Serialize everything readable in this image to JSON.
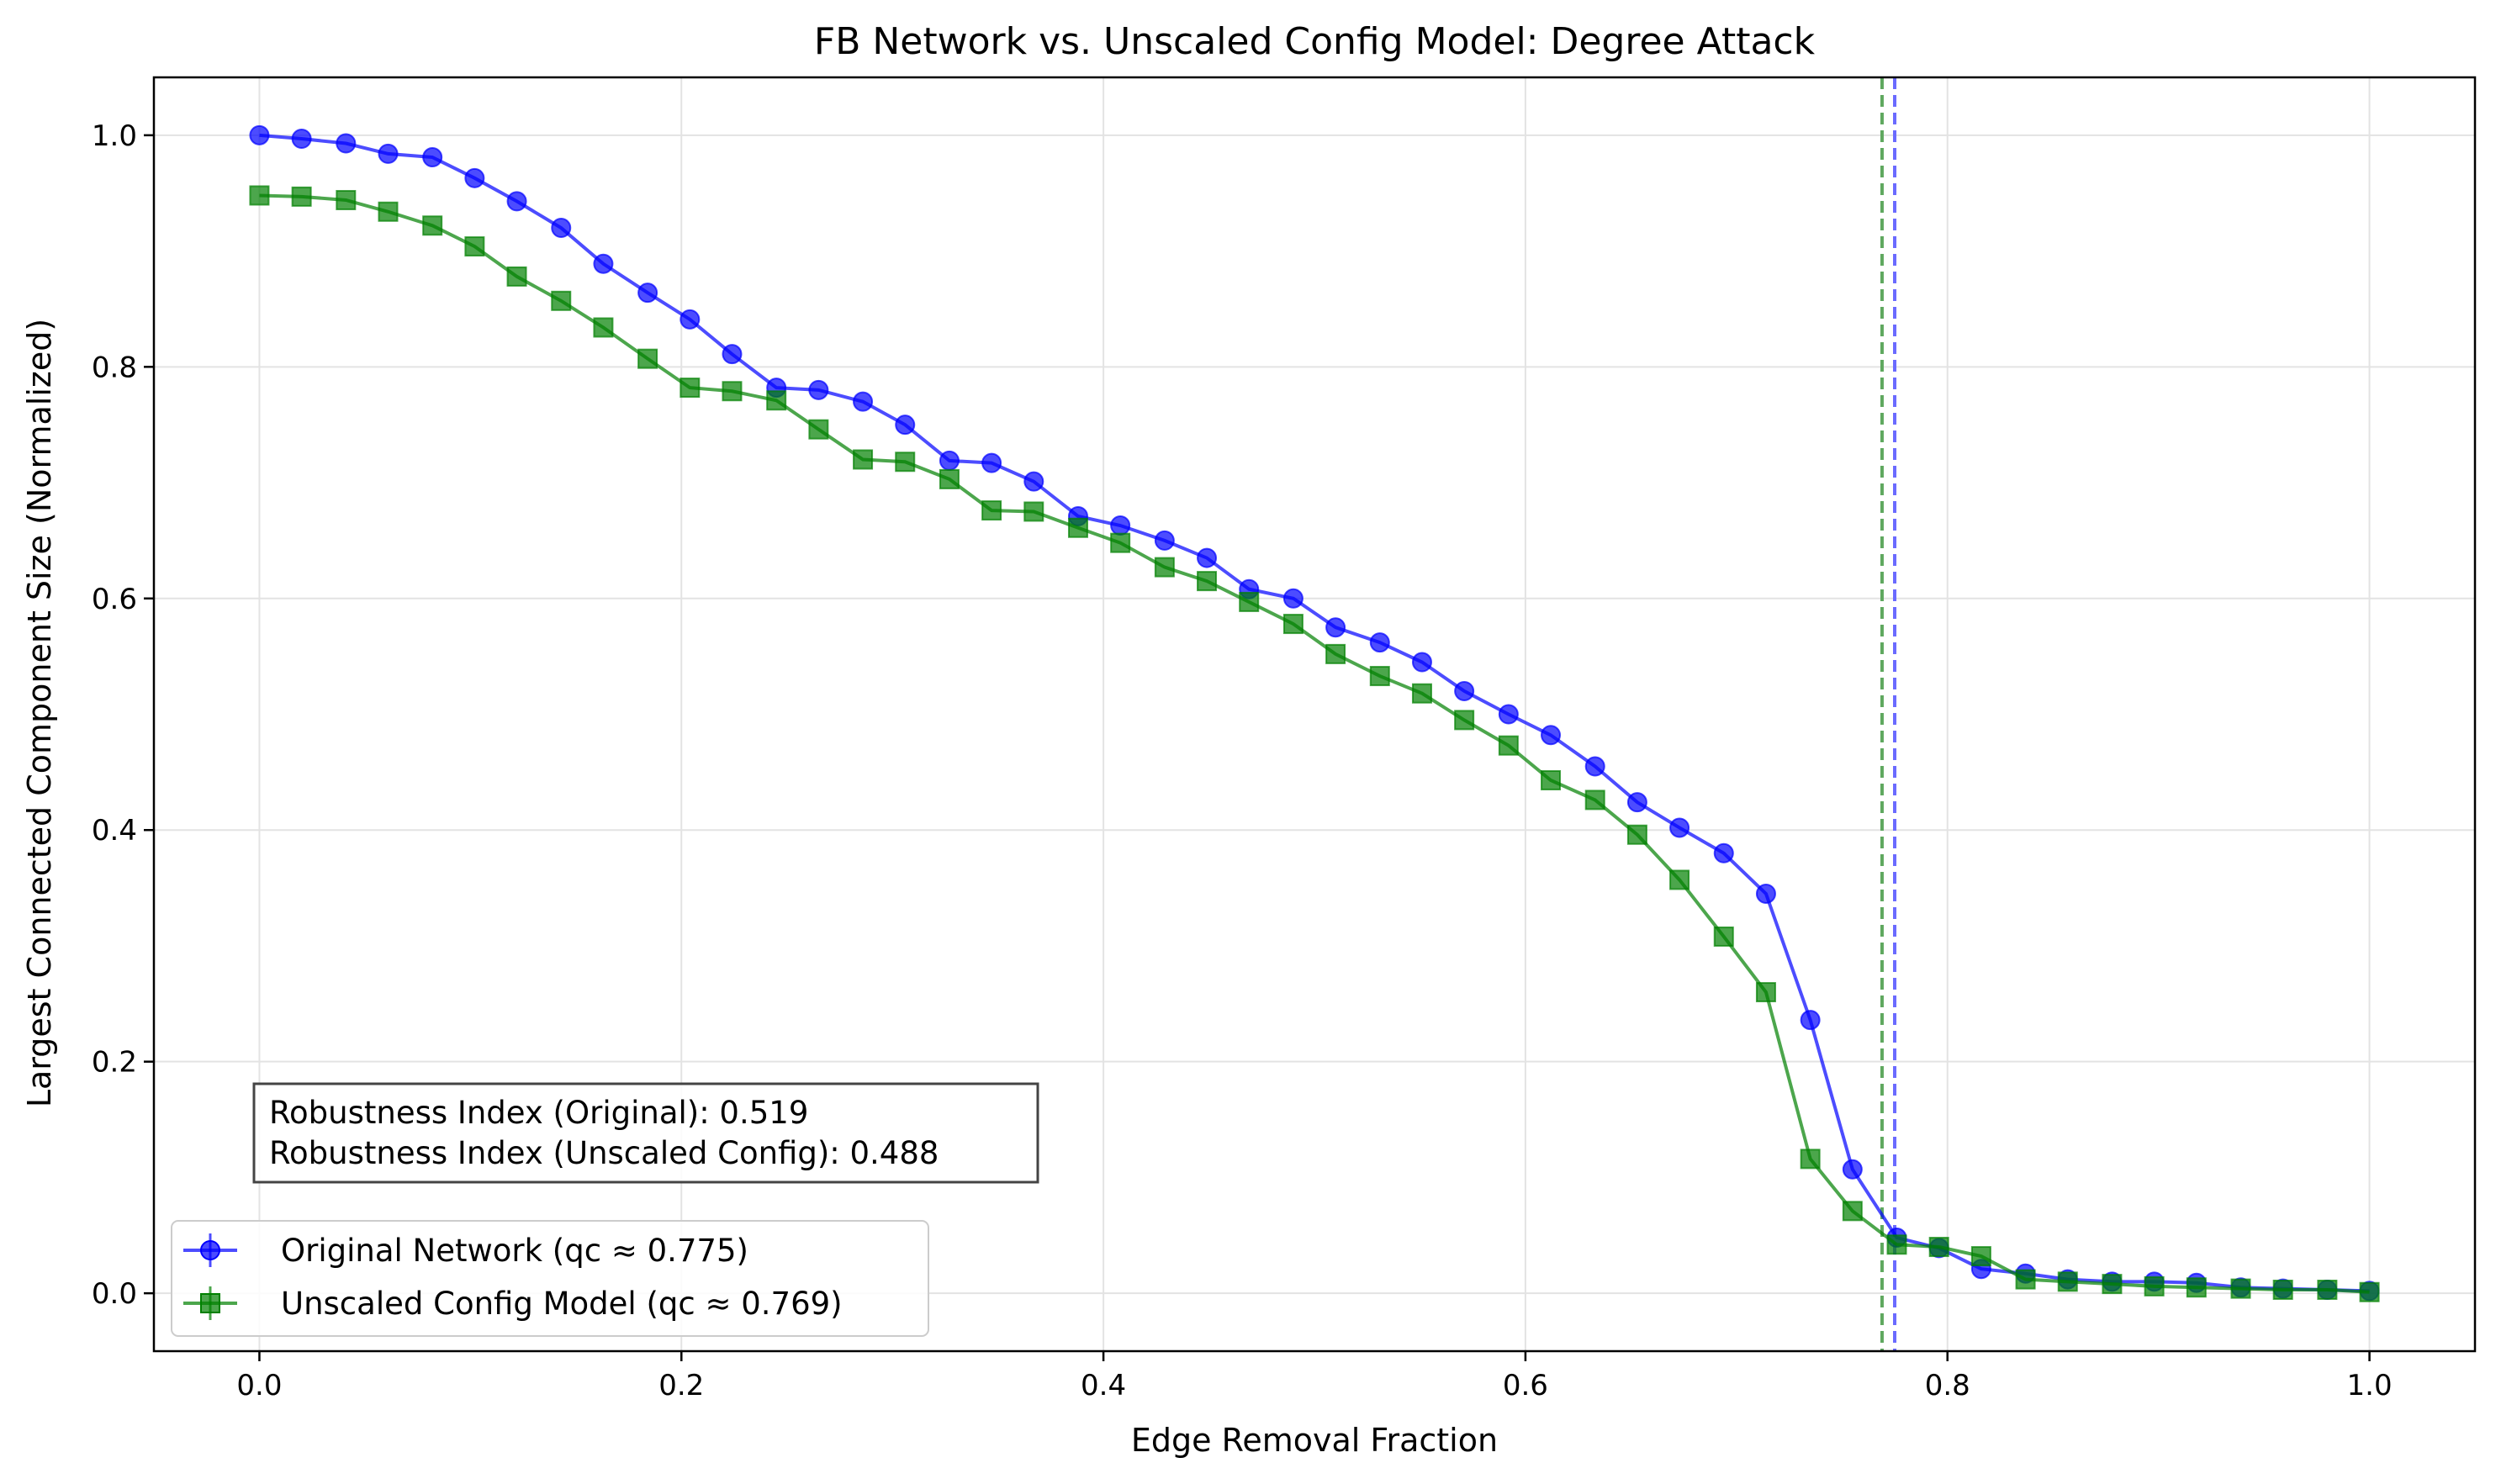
{
  "chart_data": {
    "type": "line",
    "title": "FB Network vs. Unscaled Config Model: Degree Attack",
    "xlabel": "Edge Removal Fraction",
    "ylabel": "Largest Connected Component Size (Normalized)",
    "xlim": [
      -0.05,
      1.05
    ],
    "ylim": [
      -0.05,
      1.05
    ],
    "xticks": [
      0.0,
      0.2,
      0.4,
      0.6,
      0.8,
      1.0
    ],
    "xtick_labels": [
      "0.0",
      "0.2",
      "0.4",
      "0.6",
      "0.8",
      "1.0"
    ],
    "yticks": [
      0.0,
      0.2,
      0.4,
      0.6,
      0.8,
      1.0
    ],
    "ytick_labels": [
      "0.0",
      "0.2",
      "0.4",
      "0.6",
      "0.8",
      "1.0"
    ],
    "grid": true,
    "legend_position": "lower-left",
    "x": [
      0.0,
      0.02,
      0.041,
      0.061,
      0.082,
      0.102,
      0.122,
      0.143,
      0.163,
      0.184,
      0.204,
      0.224,
      0.245,
      0.265,
      0.286,
      0.306,
      0.327,
      0.347,
      0.367,
      0.388,
      0.408,
      0.429,
      0.449,
      0.469,
      0.49,
      0.51,
      0.531,
      0.551,
      0.571,
      0.592,
      0.612,
      0.633,
      0.653,
      0.673,
      0.694,
      0.714,
      0.735,
      0.755,
      0.776,
      0.796,
      0.816,
      0.837,
      0.857,
      0.878,
      0.898,
      0.918,
      0.939,
      0.959,
      0.98,
      1.0
    ],
    "series": [
      {
        "name": "Original Network (qc ≈ 0.775)",
        "color": "#0000ff",
        "marker": "circle",
        "values": [
          1.0,
          0.997,
          0.993,
          0.984,
          0.981,
          0.963,
          0.943,
          0.92,
          0.889,
          0.864,
          0.841,
          0.811,
          0.782,
          0.78,
          0.77,
          0.75,
          0.719,
          0.717,
          0.701,
          0.671,
          0.663,
          0.65,
          0.635,
          0.608,
          0.6,
          0.575,
          0.562,
          0.545,
          0.52,
          0.5,
          0.482,
          0.455,
          0.424,
          0.402,
          0.38,
          0.345,
          0.236,
          0.107,
          0.048,
          0.039,
          0.021,
          0.017,
          0.012,
          0.01,
          0.01,
          0.009,
          0.005,
          0.004,
          0.003,
          0.002
        ]
      },
      {
        "name": "Unscaled Config Model (qc ≈ 0.769)",
        "color": "#008000",
        "marker": "square",
        "values": [
          0.948,
          0.947,
          0.944,
          0.934,
          0.922,
          0.904,
          0.878,
          0.857,
          0.834,
          0.807,
          0.782,
          0.779,
          0.771,
          0.746,
          0.72,
          0.718,
          0.703,
          0.676,
          0.675,
          0.661,
          0.648,
          0.627,
          0.615,
          0.597,
          0.578,
          0.552,
          0.533,
          0.518,
          0.495,
          0.473,
          0.443,
          0.426,
          0.396,
          0.357,
          0.308,
          0.26,
          0.116,
          0.071,
          0.042,
          0.04,
          0.032,
          0.012,
          0.01,
          0.008,
          0.006,
          0.005,
          0.004,
          0.003,
          0.003,
          0.001
        ]
      }
    ],
    "vlines": [
      {
        "x": 0.775,
        "color": "#6b6bff",
        "style": "dashed"
      },
      {
        "x": 0.769,
        "color": "#5fa85f",
        "style": "dashed"
      }
    ],
    "annotation": {
      "line1": "Robustness Index (Original): 0.519",
      "line2": "Robustness Index (Unscaled Config): 0.488"
    }
  }
}
